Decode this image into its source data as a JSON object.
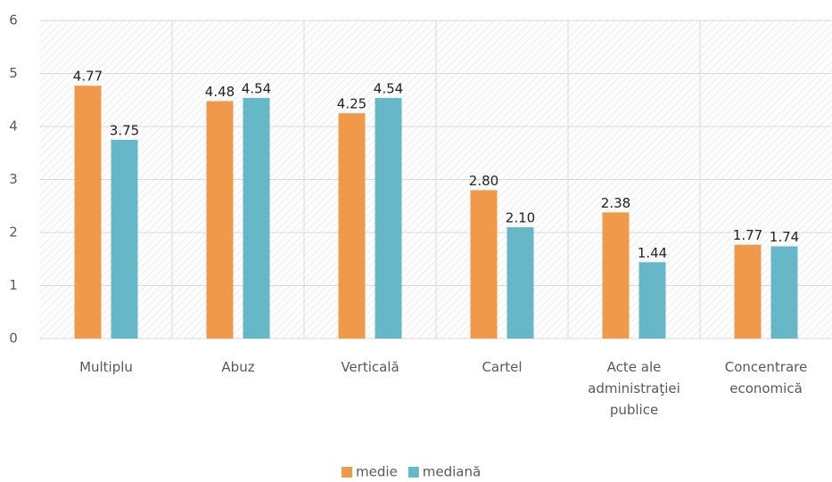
{
  "chart_data": {
    "type": "bar",
    "categories": [
      "Multiplu",
      "Abuz",
      "Verticală",
      "Cartel",
      "Acte ale administraţiei publice",
      "Concentrare economică"
    ],
    "series": [
      {
        "name": "medie",
        "color": "#f0994a",
        "values": [
          4.77,
          4.48,
          4.25,
          2.8,
          2.38,
          1.77
        ],
        "value_labels": [
          "4.77",
          "4.48",
          "4.25",
          "2.80",
          "2.38",
          "1.77"
        ]
      },
      {
        "name": "mediană",
        "color": "#66b7c8",
        "values": [
          3.75,
          4.54,
          4.54,
          2.1,
          1.44,
          1.74
        ],
        "value_labels": [
          "3.75",
          "4.54",
          "4.54",
          "2.10",
          "1.44",
          "1.74"
        ]
      }
    ],
    "ylim": [
      0,
      6
    ],
    "yticks": [
      0,
      1,
      2,
      3,
      4,
      5,
      6
    ],
    "grid": true,
    "legend": "bottom"
  }
}
